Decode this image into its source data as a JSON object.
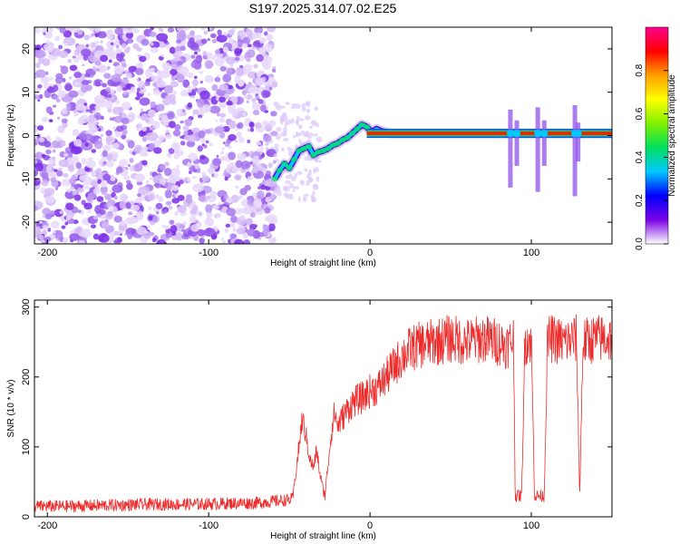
{
  "title": "S197.2025.314.07.02.E25",
  "chart_data": [
    {
      "type": "heatmap",
      "name": "spectrogram",
      "xlabel": "Height of straight line (km)",
      "ylabel": "Frequency (Hz)",
      "xlim": [
        -208,
        150
      ],
      "ylim": [
        -25,
        25
      ],
      "xticks": [
        -200,
        -100,
        0,
        100
      ],
      "yticks": [
        -20,
        -10,
        0,
        10,
        20
      ],
      "noise_region_x": [
        -208,
        -59
      ],
      "signal_track": {
        "x": [
          -59,
          -56,
          -53,
          -50,
          -47,
          -44,
          -41,
          -38,
          -35,
          -32,
          -29,
          -26,
          -23,
          -20,
          -17,
          -14,
          -11,
          -8,
          -5,
          -2,
          1,
          4,
          7,
          10,
          13,
          150
        ],
        "freq": [
          -10,
          -8,
          -6.5,
          -7.5,
          -5.5,
          -3.5,
          -3,
          -2.5,
          -4.5,
          -3.8,
          -3.5,
          -3,
          -2.2,
          -1.8,
          -1,
          -0.5,
          0.5,
          1.5,
          2.5,
          2,
          0.8,
          1.5,
          1,
          0.8,
          0.5,
          0.5
        ]
      },
      "colorbar": {
        "label": "Normalized spectral amplitude",
        "range": [
          0,
          1
        ],
        "ticks": [
          "0.0",
          "0.2",
          "0.4",
          "0.6",
          "0.8"
        ],
        "colors": [
          "#ffffff",
          "#7a00e6",
          "#0000ff",
          "#00c8ff",
          "#00e060",
          "#80f000",
          "#ffff00",
          "#ffa000",
          "#ff0000",
          "#ff0090"
        ]
      }
    },
    {
      "type": "line",
      "name": "snr",
      "xlabel": "Height of straight line (km)",
      "ylabel": "SNR (10 * v/v)",
      "xlim": [
        -208,
        150
      ],
      "ylim": [
        0,
        310
      ],
      "xticks": [
        -200,
        -100,
        0,
        100
      ],
      "yticks": [
        0,
        100,
        200,
        300
      ],
      "color": "#ee2b2b",
      "series": {
        "x": [
          -208,
          -190,
          -170,
          -150,
          -130,
          -110,
          -90,
          -70,
          -60,
          -48,
          -44,
          -42,
          -40,
          -37,
          -35,
          -33,
          -31,
          -28,
          -24,
          -22,
          -20,
          -15,
          -10,
          -5,
          0,
          5,
          10,
          15,
          20,
          25,
          30,
          40,
          50,
          60,
          70,
          80,
          85,
          89,
          90,
          92,
          94,
          96,
          98,
          100,
          102,
          104,
          108,
          110,
          112,
          120,
          128,
          130,
          132,
          140,
          150
        ],
        "y": [
          15,
          15,
          16,
          17,
          18,
          18,
          19,
          20,
          22,
          25,
          100,
          140,
          120,
          80,
          70,
          95,
          60,
          30,
          120,
          150,
          130,
          150,
          165,
          170,
          180,
          185,
          200,
          215,
          230,
          240,
          245,
          250,
          255,
          250,
          255,
          250,
          245,
          255,
          30,
          30,
          30,
          250,
          255,
          250,
          30,
          30,
          30,
          250,
          255,
          250,
          255,
          30,
          250,
          255,
          255
        ]
      }
    }
  ]
}
